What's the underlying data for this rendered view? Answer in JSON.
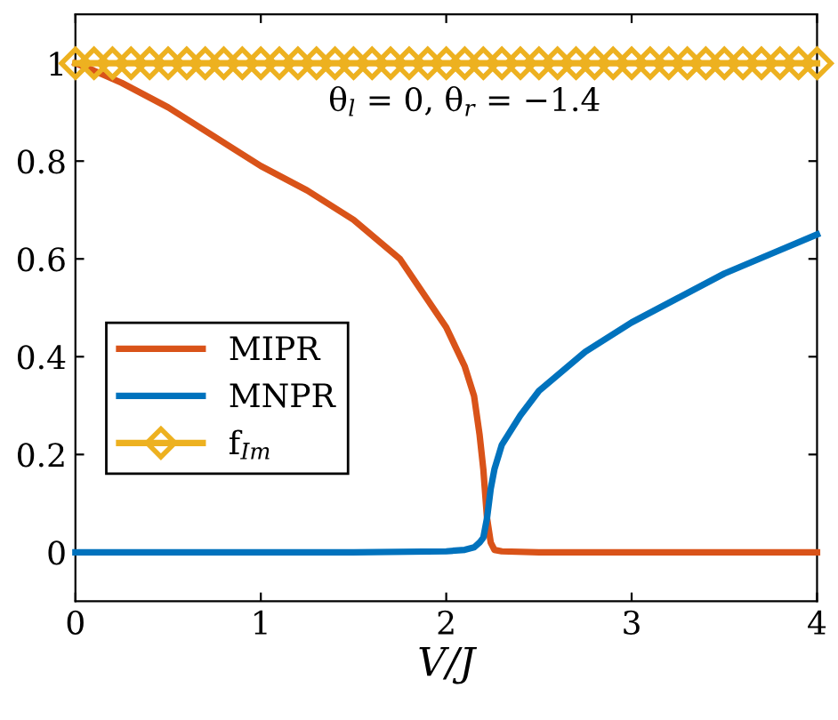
{
  "chart_data": {
    "type": "line",
    "xlabel": "V/J",
    "annotations": [
      "θ$_{l}$ = 0, θ$_{r}$ = −1.4"
    ],
    "xlim": [
      0,
      4
    ],
    "ylim": [
      -0.1,
      1.1
    ],
    "xticks": [
      0,
      1,
      2,
      3,
      4
    ],
    "yticks": [
      0,
      0.2,
      0.4,
      0.6,
      0.8,
      1
    ],
    "grid": false,
    "legend": "bottom left",
    "line_style": "solid",
    "series": [
      {
        "name": "MIPR",
        "color": "#d95319",
        "marker": "none",
        "x": [
          0,
          0.1,
          0.25,
          0.5,
          0.75,
          1,
          1.25,
          1.5,
          1.75,
          2,
          2.1,
          2.15,
          2.18,
          2.2,
          2.22,
          2.24,
          2.26,
          2.3,
          2.5,
          3,
          3.5,
          4
        ],
        "values": [
          1,
          0.985,
          0.96,
          0.91,
          0.85,
          0.79,
          0.74,
          0.68,
          0.6,
          0.46,
          0.38,
          0.32,
          0.24,
          0.17,
          0.07,
          0.02,
          0.005,
          0.002,
          0,
          0,
          0,
          0
        ]
      },
      {
        "name": "MNPR",
        "color": "#0072bd",
        "marker": "none",
        "x": [
          0,
          0.5,
          1,
          1.5,
          2,
          2.1,
          2.15,
          2.18,
          2.2,
          2.22,
          2.24,
          2.26,
          2.3,
          2.4,
          2.5,
          2.75,
          3,
          3.25,
          3.5,
          3.75,
          4
        ],
        "values": [
          0,
          0,
          0,
          0,
          0.002,
          0.005,
          0.01,
          0.02,
          0.03,
          0.07,
          0.13,
          0.17,
          0.22,
          0.28,
          0.33,
          0.41,
          0.47,
          0.52,
          0.57,
          0.61,
          0.65
        ]
      },
      {
        "name": "f$_{Im}$",
        "color": "#edb120",
        "marker": "diamond",
        "x": [
          0,
          0.1,
          0.2,
          0.3,
          0.4,
          0.5,
          0.6,
          0.7,
          0.8,
          0.9,
          1,
          1.1,
          1.2,
          1.3,
          1.4,
          1.5,
          1.6,
          1.7,
          1.8,
          1.9,
          2,
          2.1,
          2.2,
          2.3,
          2.4,
          2.5,
          2.6,
          2.7,
          2.8,
          2.9,
          3,
          3.1,
          3.2,
          3.3,
          3.4,
          3.5,
          3.6,
          3.7,
          3.8,
          3.9,
          4
        ],
        "values": [
          1,
          1,
          1,
          1,
          1,
          1,
          1,
          1,
          1,
          1,
          1,
          1,
          1,
          1,
          1,
          1,
          1,
          1,
          1,
          1,
          1,
          1,
          1,
          1,
          1,
          1,
          1,
          1,
          1,
          1,
          1,
          1,
          1,
          1,
          1,
          1,
          1,
          1,
          1,
          1,
          1
        ]
      }
    ]
  }
}
